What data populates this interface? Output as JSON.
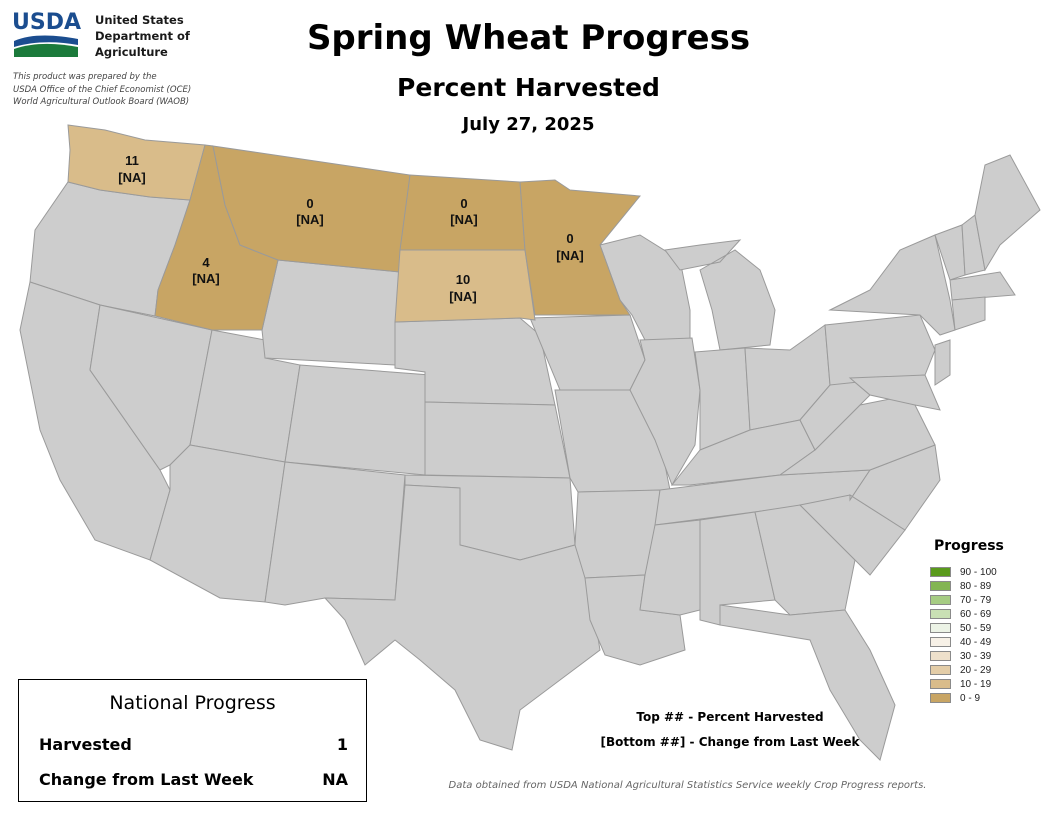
{
  "header": {
    "logo_text": "USDA",
    "agency_lines": [
      "United States",
      "Department of",
      "Agriculture"
    ],
    "prepared_lines": [
      "This product was prepared by the",
      "USDA Office of the Chief Economist (OCE)",
      "World Agricultural Outlook Board (WAOB)"
    ]
  },
  "title": "Spring Wheat Progress",
  "subtitle": "Percent Harvested",
  "date": "July 27, 2025",
  "colors": {
    "no_data": "#cdcdcd",
    "border": "#9a9a9a",
    "tan_0_9": "#c8a564",
    "tan_10_19": "#d9bc8a"
  },
  "states": [
    {
      "id": "WA",
      "value": "11",
      "change": "[NA]",
      "bin": "10 - 19"
    },
    {
      "id": "ID",
      "value": "4",
      "change": "[NA]",
      "bin": "0 - 9"
    },
    {
      "id": "MT",
      "value": "0",
      "change": "[NA]",
      "bin": "0 - 9"
    },
    {
      "id": "ND",
      "value": "0",
      "change": "[NA]",
      "bin": "0 - 9"
    },
    {
      "id": "SD",
      "value": "10",
      "change": "[NA]",
      "bin": "10 - 19"
    },
    {
      "id": "MN",
      "value": "0",
      "change": "[NA]",
      "bin": "0 - 9"
    }
  ],
  "legend": {
    "title": "Progress",
    "items": [
      {
        "label": "90 - 100",
        "color": "#5a9a1c"
      },
      {
        "label": "80 - 89",
        "color": "#83b553"
      },
      {
        "label": "70 - 79",
        "color": "#a6cc83"
      },
      {
        "label": "60 - 69",
        "color": "#c9e0b4"
      },
      {
        "label": "50 - 59",
        "color": "#ecf3e6"
      },
      {
        "label": "40 - 49",
        "color": "#f7f1e7"
      },
      {
        "label": "30 - 39",
        "color": "#eee0cb"
      },
      {
        "label": "20 - 29",
        "color": "#e3cda8"
      },
      {
        "label": "10 - 19",
        "color": "#d9bc8a"
      },
      {
        "label": "0 - 9",
        "color": "#c8a564"
      }
    ]
  },
  "national": {
    "title": "National Progress",
    "rows": [
      {
        "label": "Harvested",
        "value": "1"
      },
      {
        "label": "Change from Last Week",
        "value": "NA"
      }
    ]
  },
  "notes": {
    "top": "Top ## - Percent Harvested",
    "bottom": "[Bottom ##] - Change from Last Week"
  },
  "source": "Data obtained from USDA National Agricultural Statistics Service weekly Crop Progress reports."
}
